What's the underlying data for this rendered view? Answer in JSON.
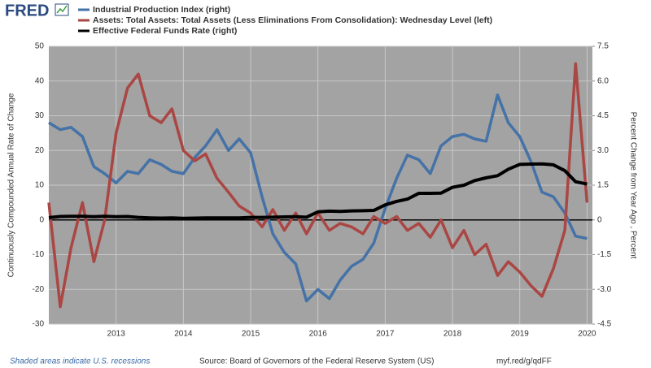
{
  "logo": "FRED",
  "chart_data": {
    "type": "line",
    "x": [
      2012,
      2012.17,
      2012.33,
      2012.5,
      2012.67,
      2012.83,
      2013,
      2013.17,
      2013.33,
      2013.5,
      2013.67,
      2013.83,
      2014,
      2014.17,
      2014.33,
      2014.5,
      2014.67,
      2014.83,
      2015,
      2015.17,
      2015.33,
      2015.5,
      2015.67,
      2015.83,
      2016,
      2016.17,
      2016.33,
      2016.5,
      2016.67,
      2016.83,
      2017,
      2017.17,
      2017.33,
      2017.5,
      2017.67,
      2017.83,
      2018,
      2018.17,
      2018.33,
      2018.5,
      2018.67,
      2018.83,
      2019,
      2019.17,
      2019.33,
      2019.5,
      2019.67,
      2019.83,
      2020
    ],
    "series": [
      {
        "name": "Industrial Production Index (right)",
        "color": "#4572a7",
        "axis": "y2",
        "values": [
          4.2,
          3.9,
          4.0,
          3.6,
          2.3,
          2.0,
          1.6,
          2.1,
          2.0,
          2.6,
          2.4,
          2.1,
          2.0,
          2.7,
          3.2,
          3.9,
          3.0,
          3.5,
          2.9,
          1.0,
          -0.6,
          -1.4,
          -1.9,
          -3.5,
          -3.0,
          -3.4,
          -2.6,
          -2.0,
          -1.7,
          -1.0,
          0.5,
          1.8,
          2.8,
          2.6,
          2.0,
          3.2,
          3.6,
          3.7,
          3.5,
          3.4,
          5.4,
          4.2,
          3.6,
          2.5,
          1.2,
          1.0,
          0.3,
          -0.7,
          -0.8
        ]
      },
      {
        "name": "Assets: Total Assets: Total Assets (Less Eliminations From Consolidation): Wednesday Level (left)",
        "color": "#aa4643",
        "values": [
          5,
          -25,
          -8,
          5,
          -12,
          0,
          25,
          38,
          42,
          30,
          28,
          32,
          20,
          17,
          19,
          12,
          8,
          4,
          2,
          -2,
          3,
          -3,
          2,
          -4,
          2,
          -3,
          -1,
          -2,
          -4,
          1,
          -1,
          1,
          -3,
          -1,
          -5,
          0,
          -8,
          -3,
          -10,
          -7,
          -16,
          -12,
          -15,
          -19,
          -22,
          -14,
          -3,
          45,
          5
        ]
      },
      {
        "name": "Effective Federal Funds Rate (right)",
        "color": "#000000",
        "axis": "y2",
        "values": [
          0.1,
          0.15,
          0.16,
          0.16,
          0.14,
          0.16,
          0.14,
          0.15,
          0.11,
          0.09,
          0.08,
          0.09,
          0.07,
          0.08,
          0.09,
          0.09,
          0.09,
          0.09,
          0.11,
          0.11,
          0.12,
          0.13,
          0.14,
          0.12,
          0.35,
          0.38,
          0.37,
          0.39,
          0.4,
          0.41,
          0.65,
          0.8,
          0.9,
          1.15,
          1.15,
          1.16,
          1.41,
          1.5,
          1.7,
          1.82,
          1.91,
          2.19,
          2.4,
          2.41,
          2.42,
          2.38,
          2.13,
          1.65,
          1.55
        ]
      }
    ],
    "ylabel": "Continuously Compounded Annual Rate of Change",
    "y2label": "Percent Change from Year Ago , Percent",
    "xlim": [
      2012,
      2020.08
    ],
    "xticks": [
      2013,
      2014,
      2015,
      2016,
      2017,
      2018,
      2019,
      2020
    ],
    "ylim": [
      -30,
      50
    ],
    "yticks": [
      -30,
      -20,
      -10,
      0,
      10,
      20,
      30,
      40,
      50
    ],
    "y2lim": [
      -4.5,
      7.5
    ],
    "y2ticks": [
      -4.5,
      {
        "value": -3,
        "label": "-3.0"
      },
      -1.5,
      0,
      1.5,
      {
        "value": 3,
        "label": "3.0"
      },
      4.5,
      {
        "value": 6,
        "label": "6.0"
      },
      7.5
    ],
    "grid": true,
    "note": "Shaded areas indicate U.S. recessions",
    "source": "Source: Board of Governors of the Federal Reserve System (US)",
    "link": "myf.red/g/qdFF"
  }
}
